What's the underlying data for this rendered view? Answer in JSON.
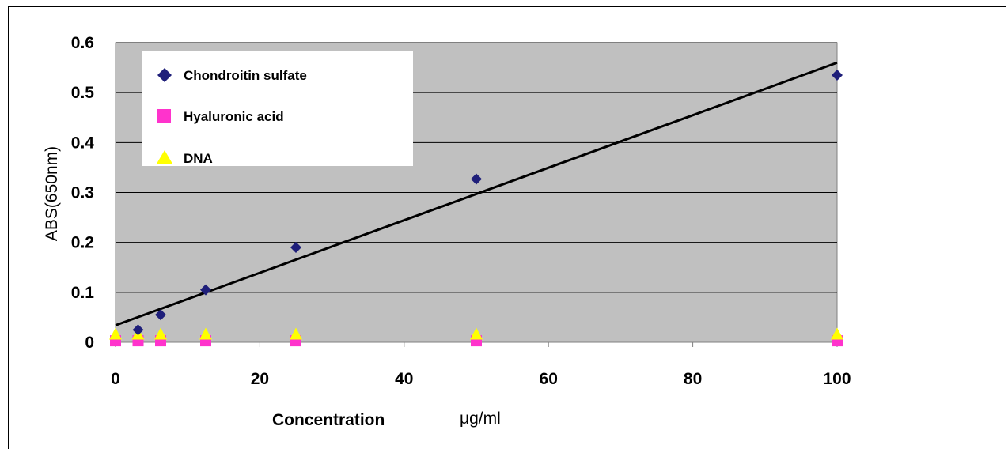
{
  "chart_data": {
    "type": "scatter",
    "ylabel": "ABS(650nm)",
    "xlabel_main": "Concentration",
    "xlabel_unit": "μg/ml",
    "xlim": [
      0,
      100
    ],
    "ylim": [
      0,
      0.6
    ],
    "x_ticks": [
      "0",
      "20",
      "40",
      "60",
      "80",
      "100"
    ],
    "y_ticks": [
      "0",
      "0.1",
      "0.2",
      "0.3",
      "0.4",
      "0.5",
      "0.6"
    ],
    "grid": true,
    "legend_position": "top-left",
    "series": [
      {
        "name": "Chondroitin sulfate",
        "marker": "diamond",
        "color": "#1f1f7a",
        "x": [
          3.125,
          6.25,
          12.5,
          25,
          50,
          100
        ],
        "y": [
          0.025,
          0.055,
          0.105,
          0.19,
          0.327,
          0.535
        ]
      },
      {
        "name": "Hyaluronic acid",
        "marker": "square",
        "color": "#ff33cc",
        "x": [
          0,
          3.125,
          6.25,
          12.5,
          25,
          50,
          100
        ],
        "y": [
          0.003,
          0.003,
          0.003,
          0.003,
          0.003,
          0.003,
          0.003
        ]
      },
      {
        "name": "DNA",
        "marker": "triangle",
        "color": "#ffff00",
        "x": [
          0,
          3.125,
          6.25,
          12.5,
          25,
          50,
          100
        ],
        "y": [
          0.015,
          0.015,
          0.015,
          0.015,
          0.015,
          0.015,
          0.015
        ]
      }
    ],
    "trendline": {
      "x": [
        0,
        100
      ],
      "y": [
        0.034,
        0.56
      ],
      "color": "#000000"
    }
  }
}
